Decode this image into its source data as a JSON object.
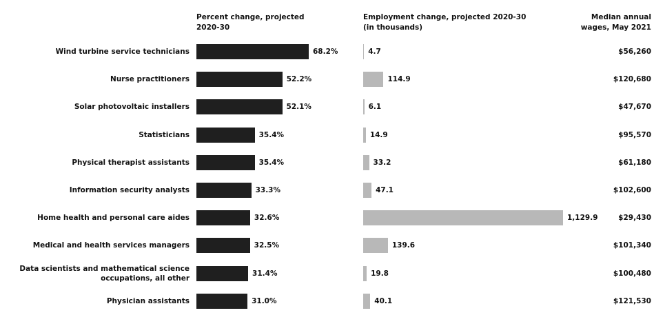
{
  "chart_data": {
    "type": "bar",
    "orientation": "horizontal",
    "categories": [
      "Wind turbine service technicians",
      "Nurse practitioners",
      "Solar photovoltaic installers",
      "Statisticians",
      "Physical therapist assistants",
      "Information security analysts",
      "Home health and personal care aides",
      "Medical and health services managers",
      "Data scientists and mathematical science occupations, all other",
      "Physician assistants"
    ],
    "series": [
      {
        "name": "Percent change, projected 2020-30",
        "color": "#1f1f1f",
        "values": [
          68.2,
          52.2,
          52.1,
          35.4,
          35.4,
          33.3,
          32.6,
          32.5,
          31.4,
          31.0
        ],
        "value_labels": [
          "68.2%",
          "52.2%",
          "52.1%",
          "35.4%",
          "35.4%",
          "33.3%",
          "32.6%",
          "32.5%",
          "31.4%",
          "31.0%"
        ]
      },
      {
        "name": "Employment change, projected 2020-30 (in thousands)",
        "color": "#b8b8b8",
        "values": [
          4.7,
          114.9,
          6.1,
          14.9,
          33.2,
          47.1,
          1129.9,
          139.6,
          19.8,
          40.1
        ],
        "value_labels": [
          "4.7",
          "114.9",
          "6.1",
          "14.9",
          "33.2",
          "47.1",
          "1,129.9",
          "139.6",
          "19.8",
          "40.1"
        ]
      }
    ],
    "wages": {
      "title": "Median annual wages, May 2021",
      "values": [
        56260,
        120680,
        47670,
        95570,
        61180,
        102600,
        29430,
        101340,
        100480,
        121530
      ],
      "value_labels": [
        "$56,260",
        "$120,680",
        "$47,670",
        "$95,570",
        "$61,180",
        "$102,600",
        "$29,430",
        "$101,340",
        "$100,480",
        "$121,530"
      ]
    }
  }
}
